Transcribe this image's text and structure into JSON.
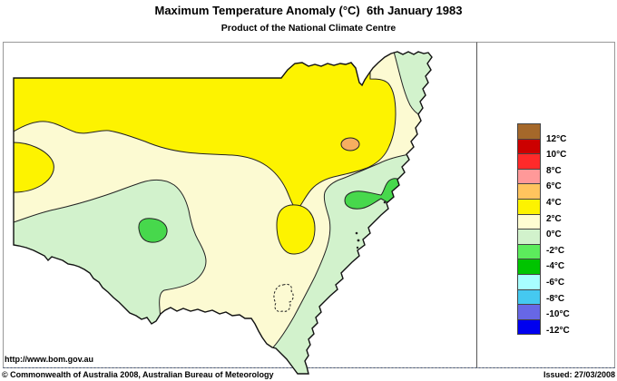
{
  "title": "Maximum Temperature Anomaly (°C)  6th January 1983",
  "subtitle": "Product of the National Climate Centre",
  "footer": {
    "url": "http://www.bom.gov.au",
    "copyright": "© Commonwealth of Australia 2008, Australian Bureau of Meteorology",
    "issued": "Issued: 27/03/2008"
  },
  "legend": {
    "labels": [
      "12°C",
      "10°C",
      "8°C",
      "6°C",
      "4°C",
      "2°C",
      "0°C",
      "-2°C",
      "-4°C",
      "-6°C",
      "-8°C",
      "-10°C",
      "-12°C"
    ],
    "swatch_colors": [
      "#A5682A",
      "#CC0000",
      "#FF2A2A",
      "#FF9999",
      "#FFC45E",
      "#FDF300",
      "#FFFDD2",
      "#D2F2CC",
      "#5CEC5C",
      "#00C400",
      "#A8FFFF",
      "#45C9F0",
      "#6767E6",
      "#0000EF"
    ]
  },
  "colors": {
    "map_yellow": "#FDF300",
    "map_cream": "#FCFAD2",
    "map_palegreen": "#D2F2CC",
    "map_green": "#47D84C",
    "map_orange": "#F6AE60",
    "outline": "#111111",
    "contour": "#222222",
    "frame": "#999999",
    "divider": "#555555",
    "dashed_border": "#445577",
    "lake": "#222222"
  },
  "map": {
    "region": "New South Wales, Australia",
    "boundary_dashed": "ACT boundary (dashed)",
    "regions": [
      {
        "range": "2 to 4 °C",
        "area": "large band across northern NSW",
        "color_key": "map_yellow"
      },
      {
        "range": "4 to 6 °C",
        "area": "small spot, northeast inland",
        "color_key": "map_orange"
      },
      {
        "range": "0 to 2 °C",
        "area": "background band through centre and south",
        "color_key": "map_cream"
      },
      {
        "range": "0 to -2 °C",
        "area": "southwest region, south coastal strip, northeast corner",
        "color_key": "map_palegreen"
      },
      {
        "range": "-2 to -4 °C",
        "area": "spots: southwest interior and central coast",
        "color_key": "map_green"
      },
      {
        "range": "2 to 4 °C",
        "area": "central spot and west-edge spot",
        "color_key": "map_yellow"
      }
    ]
  }
}
